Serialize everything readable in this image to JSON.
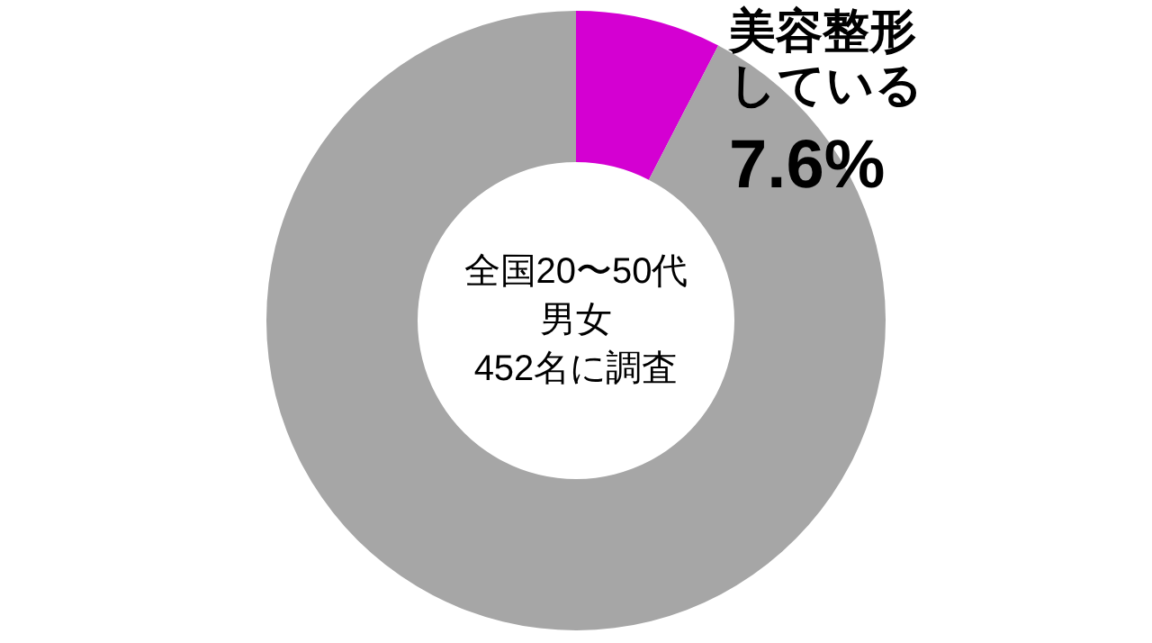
{
  "chart_data": {
    "type": "donut",
    "categories": [
      "美容整形している",
      null
    ],
    "values": [
      7.6,
      92.4
    ],
    "colors": [
      "#d400d2",
      "#a6a6a6"
    ],
    "value_labels": [
      "7.6%",
      null
    ],
    "annotations": [
      "全国20〜50代",
      "男女",
      "452名に調査"
    ]
  }
}
